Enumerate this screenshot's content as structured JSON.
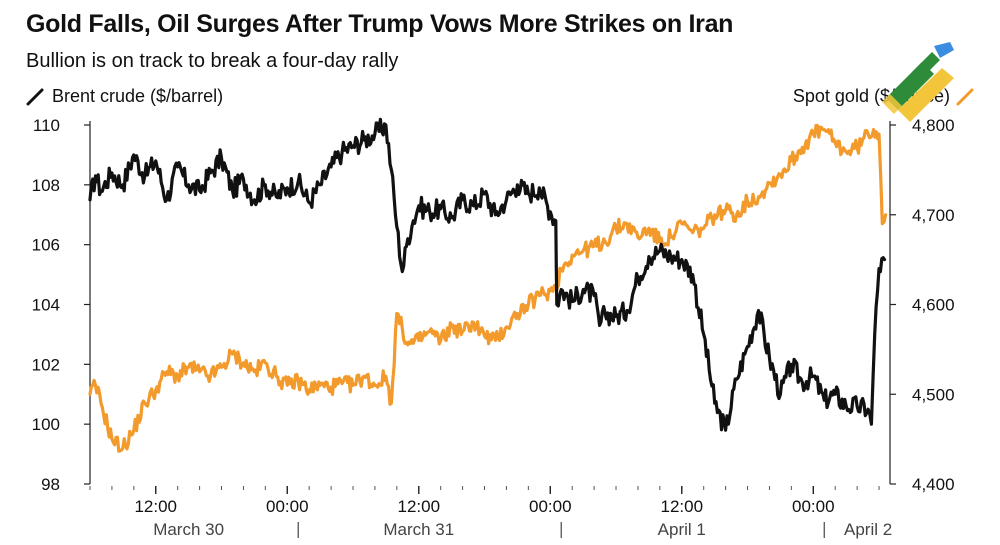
{
  "header": {
    "title": "Gold Falls, Oil Surges After Trump Vows More Strikes on Iran",
    "subtitle": "Bullion is on track to break a four-day rally"
  },
  "legend": {
    "left": "Brent crude ($/barrel)",
    "right": "Spot gold ($/ounce)"
  },
  "colors": {
    "oil": "#111111",
    "gold": "#f39a2c",
    "axis": "#222222"
  },
  "chart_data": {
    "type": "line",
    "title": "Gold Falls, Oil Surges After Trump Vows More Strikes on Iran",
    "subtitle": "Bullion is on track to break a four-day rally",
    "x_unit": "hours since 00:00 March 30",
    "x_range": [
      6,
      79
    ],
    "x_ticks": [
      {
        "x": 12,
        "label": "12:00"
      },
      {
        "x": 24,
        "label": "00:00"
      },
      {
        "x": 36,
        "label": "12:00"
      },
      {
        "x": 48,
        "label": "00:00"
      },
      {
        "x": 60,
        "label": "12:00"
      },
      {
        "x": 72,
        "label": "00:00"
      }
    ],
    "day_labels": [
      {
        "x": 15,
        "label": "March 30"
      },
      {
        "x": 36,
        "label": "March 31"
      },
      {
        "x": 60,
        "label": "April 1"
      },
      {
        "x": 77,
        "label": "April 2"
      }
    ],
    "day_separators": [
      25,
      49,
      73
    ],
    "y_left": {
      "label": "Brent crude ($/barrel)",
      "range": [
        98,
        110
      ],
      "ticks": [
        98,
        100,
        102,
        104,
        106,
        108,
        110
      ]
    },
    "y_right": {
      "label": "Spot gold ($/ounce)",
      "range": [
        4400,
        4800
      ],
      "ticks": [
        4400,
        4500,
        4600,
        4700,
        4800
      ],
      "tick_labels": [
        "4,400",
        "4,500",
        "4,600",
        "4,700",
        "4,800"
      ]
    },
    "series": [
      {
        "name": "Brent crude ($/barrel)",
        "axis": "left",
        "color": "#111111",
        "x": [
          6,
          6.5,
          7,
          8,
          9,
          10,
          11,
          12,
          13,
          14,
          15,
          16,
          17,
          18,
          19,
          20,
          21,
          22,
          23,
          24,
          25,
          26,
          27,
          28,
          29,
          30,
          31,
          32,
          33,
          33.5,
          34,
          34.5,
          35,
          35.5,
          36,
          37,
          38,
          39,
          40,
          41,
          42,
          43,
          44,
          45,
          46,
          47,
          48,
          48.5,
          48.6,
          49,
          50,
          51,
          52,
          52.5,
          53,
          54,
          55,
          56,
          57,
          58,
          59,
          60,
          61,
          62,
          63,
          64,
          65,
          66,
          67,
          68,
          69,
          70,
          71,
          72,
          73,
          74,
          75,
          76,
          77,
          77.3,
          77.6,
          78,
          78.5
        ],
        "y": [
          107.5,
          108.3,
          107.8,
          108.4,
          108.0,
          109.0,
          108.3,
          108.8,
          107.5,
          108.6,
          108.0,
          107.8,
          108.4,
          108.9,
          107.8,
          108.2,
          107.5,
          108.0,
          107.6,
          107.9,
          108.1,
          107.4,
          108.0,
          108.6,
          109.1,
          109.3,
          109.5,
          109.7,
          110.0,
          108.5,
          106.6,
          105.1,
          106.2,
          106.8,
          107.3,
          107.1,
          107.2,
          106.9,
          107.5,
          107.3,
          107.7,
          107.0,
          107.5,
          108.0,
          107.7,
          107.9,
          107.1,
          106.8,
          104.0,
          104.5,
          104.1,
          104.5,
          104.3,
          103.3,
          103.7,
          103.6,
          103.8,
          104.9,
          105.6,
          105.8,
          105.6,
          105.5,
          105.0,
          103.0,
          100.7,
          99.8,
          101.5,
          102.6,
          103.8,
          102.2,
          101.0,
          102.0,
          101.4,
          101.6,
          100.8,
          101.0,
          100.6,
          100.6,
          100.5,
          100.0,
          103.0,
          105.2,
          105.5
        ]
      },
      {
        "name": "Spot gold ($/ounce)",
        "axis": "right",
        "color": "#f39a2c",
        "x": [
          6,
          6.5,
          7,
          8,
          9,
          10,
          11,
          12,
          13,
          14,
          15,
          16,
          17,
          18,
          19,
          20,
          21,
          22,
          23,
          24,
          25,
          26,
          27,
          28,
          29,
          30,
          31,
          32,
          33,
          33.5,
          34,
          35,
          36,
          37,
          38,
          39,
          40,
          41,
          42,
          43,
          44,
          45,
          46,
          47,
          48,
          48.5,
          49,
          50,
          51,
          52,
          53,
          54,
          55,
          56,
          57,
          58,
          59,
          60,
          61,
          62,
          63,
          64,
          65,
          66,
          67,
          68,
          69,
          70,
          71,
          72,
          73,
          74,
          75,
          76,
          77,
          77.5,
          78,
          78.3,
          78.6
        ],
        "y": [
          4500,
          4510,
          4490,
          4450,
          4440,
          4460,
          4490,
          4505,
          4525,
          4520,
          4530,
          4525,
          4520,
          4530,
          4545,
          4535,
          4525,
          4535,
          4520,
          4510,
          4515,
          4505,
          4510,
          4508,
          4512,
          4510,
          4520,
          4510,
          4520,
          4490,
          4590,
          4555,
          4560,
          4570,
          4560,
          4575,
          4570,
          4580,
          4565,
          4560,
          4575,
          4590,
          4600,
          4610,
          4615,
          4620,
          4640,
          4655,
          4660,
          4665,
          4670,
          4685,
          4690,
          4675,
          4685,
          4670,
          4675,
          4690,
          4680,
          4685,
          4700,
          4705,
          4700,
          4715,
          4720,
          4735,
          4745,
          4760,
          4775,
          4790,
          4795,
          4780,
          4770,
          4775,
          4790,
          4795,
          4790,
          4690,
          4700
        ]
      }
    ]
  }
}
